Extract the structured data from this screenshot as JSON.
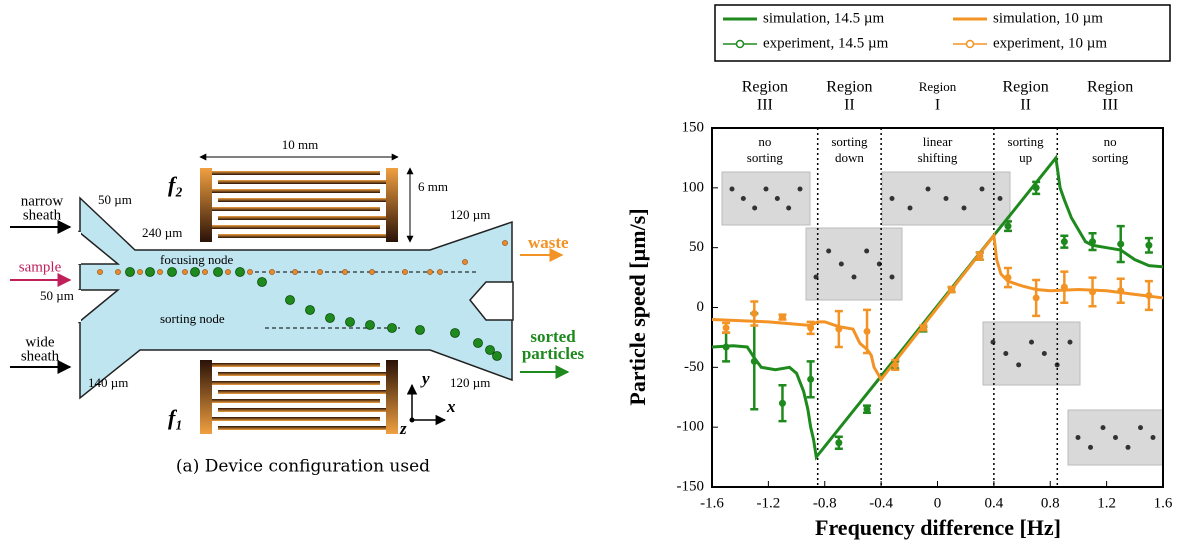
{
  "diagram": {
    "dimensions": {
      "width": "10 mm",
      "height": "6 mm"
    },
    "electrodes": {
      "top": "f₂",
      "bottom": "f₁"
    },
    "inlets": {
      "narrow_sheath": [
        "narrow",
        "sheath"
      ],
      "sample": "sample",
      "wide_sheath": [
        "wide",
        "sheath"
      ]
    },
    "channel_widths": [
      "50 µm",
      "240 µm",
      "50 µm",
      "140 µm",
      "120 µm",
      "120 µm"
    ],
    "nodes": {
      "focusing": "focusing node",
      "sorting": "sorting node"
    },
    "outlets": {
      "waste": "waste",
      "sorted": [
        "sorted",
        "particles"
      ]
    },
    "axes": {
      "x": "x",
      "y": "y",
      "z": "z"
    },
    "caption": "(a) Device configuration used"
  },
  "chart_data": {
    "type": "line",
    "x_label": "Frequency difference [Hz]",
    "y_label": "Particle speed [µm/s]",
    "xlim": [
      -1.6,
      1.6
    ],
    "xticks": [
      -1.6,
      -1.2,
      -0.8,
      -0.4,
      0,
      0.4,
      0.8,
      1.2,
      1.6
    ],
    "ylim": [
      -150,
      150
    ],
    "yticks": [
      -150,
      -100,
      -50,
      0,
      50,
      100,
      150
    ],
    "legend": "top",
    "dividers": [
      -0.85,
      -0.4,
      0.4,
      0.85
    ],
    "regions": [
      {
        "label": "Region",
        "numeral": "III",
        "note": [
          "no",
          "sorting"
        ]
      },
      {
        "label": "Region",
        "numeral": "II",
        "note": [
          "sorting",
          "down"
        ]
      },
      {
        "label": "Region",
        "numeral": "I",
        "note": [
          "linear",
          "shifting"
        ]
      },
      {
        "label": "Region",
        "numeral": "II",
        "note": [
          "sorting",
          "up"
        ]
      },
      {
        "label": "Region",
        "numeral": "III",
        "note": [
          "no",
          "sorting"
        ]
      }
    ],
    "series": [
      {
        "name": "simulation, 14.5 µm",
        "color": "#1e8a1e",
        "style": "line",
        "x": [
          -1.6,
          -1.45,
          -1.35,
          -1.3,
          -1.25,
          -1.15,
          -1.05,
          -1.0,
          -0.95,
          -0.92,
          -0.9,
          -0.88,
          -0.86,
          0.84,
          0.87,
          0.9,
          0.95,
          1.0,
          1.05,
          1.1,
          1.2,
          1.3,
          1.4,
          1.5,
          1.6
        ],
        "values": [
          -33,
          -32,
          -33,
          -42,
          -50,
          -52,
          -50,
          -55,
          -70,
          -85,
          -100,
          -110,
          -125,
          125,
          100,
          90,
          75,
          65,
          55,
          52,
          50,
          48,
          40,
          35,
          34
        ]
      },
      {
        "name": "simulation, 10 µm",
        "color": "#f39325",
        "style": "line",
        "x": [
          -1.6,
          -1.2,
          -1.0,
          -0.9,
          -0.85,
          -0.8,
          -0.7,
          -0.6,
          -0.55,
          -0.5,
          -0.47,
          -0.45,
          -0.4,
          0.4,
          0.42,
          0.45,
          0.5,
          0.6,
          0.7,
          0.8,
          1.0,
          1.2,
          1.4,
          1.6
        ],
        "values": [
          -10,
          -12,
          -14,
          -15,
          -12,
          -12,
          -16,
          -18,
          -30,
          -35,
          -40,
          -50,
          -60,
          60,
          40,
          28,
          22,
          18,
          15,
          14,
          15,
          14,
          11,
          8
        ]
      },
      {
        "name": "experiment, 14.5 µm",
        "color": "#1e8a1e",
        "style": "points",
        "x": [
          -1.5,
          -1.3,
          -1.1,
          -0.9,
          -0.7,
          -0.5,
          -0.3,
          -0.1,
          0.1,
          0.3,
          0.5,
          0.7,
          0.9,
          1.1,
          1.3,
          1.5
        ],
        "values": [
          -33,
          -45,
          -80,
          -60,
          -113,
          -85,
          -48,
          -18,
          15,
          43,
          68,
          100,
          55,
          55,
          53,
          52
        ],
        "error": [
          12,
          40,
          15,
          15,
          5,
          3,
          3,
          2,
          2,
          3,
          4,
          5,
          5,
          7,
          15,
          6
        ]
      },
      {
        "name": "experiment, 10 µm",
        "color": "#f39325",
        "style": "points",
        "x": [
          -1.5,
          -1.3,
          -1.1,
          -0.9,
          -0.7,
          -0.5,
          -0.3,
          -0.1,
          0.1,
          0.3,
          0.5,
          0.7,
          0.9,
          1.1,
          1.3,
          1.5
        ],
        "values": [
          -17,
          -5,
          -8,
          -17,
          -18,
          -20,
          -48,
          -17,
          15,
          43,
          25,
          8,
          17,
          13,
          14,
          10
        ],
        "error": [
          4,
          10,
          2,
          5,
          15,
          18,
          4,
          2,
          2,
          3,
          8,
          15,
          13,
          12,
          10,
          12
        ]
      }
    ]
  }
}
